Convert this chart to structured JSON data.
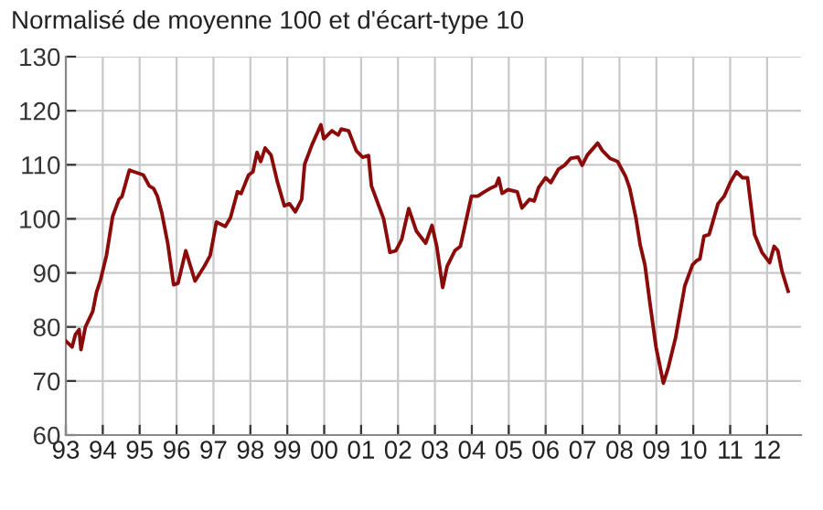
{
  "chart_data": {
    "type": "line",
    "title": "Normalisé de moyenne 100 et d'écart-type 10",
    "x": [
      1993.0,
      1993.17,
      1993.26,
      1993.36,
      1993.41,
      1993.53,
      1993.73,
      1993.83,
      1993.94,
      1994.1,
      1994.27,
      1994.44,
      1994.52,
      1994.72,
      1994.85,
      1994.98,
      1995.1,
      1995.26,
      1995.38,
      1995.48,
      1995.6,
      1995.76,
      1995.92,
      1996.04,
      1996.25,
      1996.5,
      1996.75,
      1996.91,
      1997.08,
      1997.32,
      1997.46,
      1997.65,
      1997.75,
      1997.95,
      1998.07,
      1998.18,
      1998.28,
      1998.4,
      1998.56,
      1998.73,
      1998.92,
      1999.06,
      1999.22,
      1999.39,
      1999.47,
      1999.67,
      1999.91,
      1999.99,
      2000.21,
      2000.38,
      2000.46,
      2000.66,
      2000.87,
      2001.04,
      2001.2,
      2001.28,
      2001.61,
      2001.78,
      2001.94,
      2002.1,
      2002.29,
      2002.5,
      2002.75,
      2002.92,
      2003.05,
      2003.21,
      2003.33,
      2003.54,
      2003.69,
      2003.87,
      2003.99,
      2004.16,
      2004.32,
      2004.49,
      2004.65,
      2004.73,
      2004.82,
      2004.98,
      2005.23,
      2005.36,
      2005.56,
      2005.69,
      2005.81,
      2006.0,
      2006.14,
      2006.35,
      2006.51,
      2006.68,
      2006.88,
      2006.99,
      2007.13,
      2007.41,
      2007.54,
      2007.74,
      2007.95,
      2008.17,
      2008.28,
      2008.45,
      2008.56,
      2008.69,
      2008.83,
      2008.99,
      2009.19,
      2009.32,
      2009.52,
      2009.77,
      2009.98,
      2010.1,
      2010.18,
      2010.29,
      2010.43,
      2010.67,
      2010.84,
      2011.0,
      2011.17,
      2011.33,
      2011.47,
      2011.66,
      2011.86,
      2012.07,
      2012.19,
      2012.29,
      2012.4,
      2012.57
    ],
    "series": [
      {
        "color": "#8b0a0a",
        "values": [
          77.4,
          76.3,
          78.6,
          79.5,
          75.8,
          80,
          82.9,
          86.4,
          88.7,
          93.2,
          100.5,
          103.6,
          104.1,
          109,
          108.7,
          108.4,
          108.1,
          106.1,
          105.6,
          104.2,
          101.1,
          95.5,
          87.8,
          88.1,
          94.1,
          88.5,
          91.2,
          93.2,
          99.4,
          98.6,
          100.2,
          105,
          104.7,
          108.1,
          108.7,
          112.3,
          110.6,
          113.1,
          111.8,
          106.9,
          102.4,
          102.8,
          101.3,
          103.6,
          110.1,
          113.7,
          117.4,
          114.8,
          116.3,
          115.5,
          116.6,
          116.3,
          112.6,
          111.4,
          111.7,
          106.1,
          100,
          93.8,
          94.1,
          96.2,
          101.9,
          97.7,
          95.5,
          98.8,
          94.9,
          87.3,
          91.2,
          94.1,
          94.9,
          100.5,
          104.2,
          104.2,
          104.9,
          105.6,
          106.1,
          107.5,
          104.7,
          105.4,
          105,
          102,
          103.6,
          103.3,
          105.8,
          107.6,
          106.7,
          109.2,
          109.9,
          111.2,
          111.4,
          109.9,
          111.8,
          114,
          112.6,
          111.2,
          110.6,
          107.8,
          105.6,
          100,
          95.2,
          91.5,
          84.2,
          76.3,
          69.6,
          72.4,
          78,
          87.6,
          91.5,
          92.3,
          92.6,
          96.8,
          97.1,
          102.8,
          104.2,
          106.7,
          108.7,
          107.6,
          107.6,
          97.1,
          93.8,
          91.9,
          94.9,
          94.1,
          90.4,
          86.6
        ]
      }
    ],
    "xlim": [
      1993,
      2012.92
    ],
    "xticks": [
      {
        "value": 1993,
        "label": "93"
      },
      {
        "value": 1994,
        "label": "94"
      },
      {
        "value": 1995,
        "label": "95"
      },
      {
        "value": 1996,
        "label": "96"
      },
      {
        "value": 1997,
        "label": "97"
      },
      {
        "value": 1998,
        "label": "98"
      },
      {
        "value": 1999,
        "label": "99"
      },
      {
        "value": 2000,
        "label": "00"
      },
      {
        "value": 2001,
        "label": "01"
      },
      {
        "value": 2002,
        "label": "02"
      },
      {
        "value": 2003,
        "label": "03"
      },
      {
        "value": 2004,
        "label": "04"
      },
      {
        "value": 2005,
        "label": "05"
      },
      {
        "value": 2006,
        "label": "06"
      },
      {
        "value": 2007,
        "label": "07"
      },
      {
        "value": 2008,
        "label": "08"
      },
      {
        "value": 2009,
        "label": "09"
      },
      {
        "value": 2010,
        "label": "10"
      },
      {
        "value": 2011,
        "label": "11"
      },
      {
        "value": 2012,
        "label": "12"
      }
    ],
    "ylim": [
      60,
      130
    ],
    "yticks": [
      60,
      70,
      80,
      90,
      100,
      110,
      120,
      130
    ],
    "grid": true
  }
}
